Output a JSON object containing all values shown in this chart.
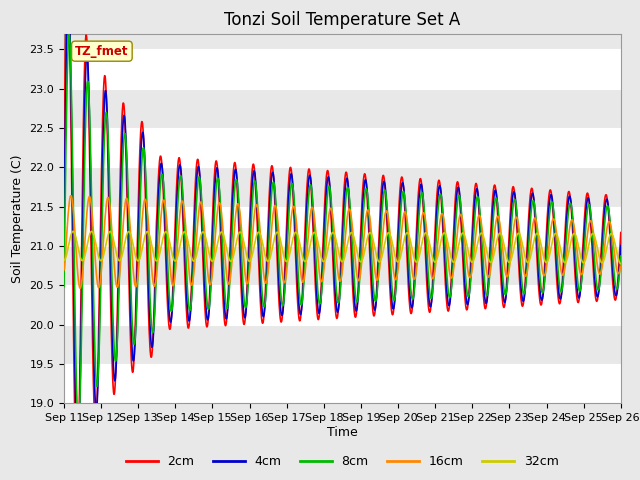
{
  "title": "Tonzi Soil Temperature Set A",
  "xlabel": "Time",
  "ylabel": "Soil Temperature (C)",
  "annotation_text": "TZ_fmet",
  "ylim": [
    19.0,
    23.7
  ],
  "legend_labels": [
    "2cm",
    "4cm",
    "8cm",
    "16cm",
    "32cm"
  ],
  "legend_colors": [
    "#ff0000",
    "#0000cc",
    "#00bb00",
    "#ff8800",
    "#cccc00"
  ],
  "bg_color": "#e8e8e8",
  "x_tick_labels": [
    "Sep 11",
    "Sep 12",
    "Sep 13",
    "Sep 14",
    "Sep 15",
    "Sep 16",
    "Sep 17",
    "Sep 18",
    "Sep 19",
    "Sep 20",
    "Sep 21",
    "Sep 22",
    "Sep 23",
    "Sep 24",
    "Sep 25",
    "Sep 26"
  ],
  "title_fontsize": 12,
  "axis_label_fontsize": 9,
  "tick_fontsize": 8
}
